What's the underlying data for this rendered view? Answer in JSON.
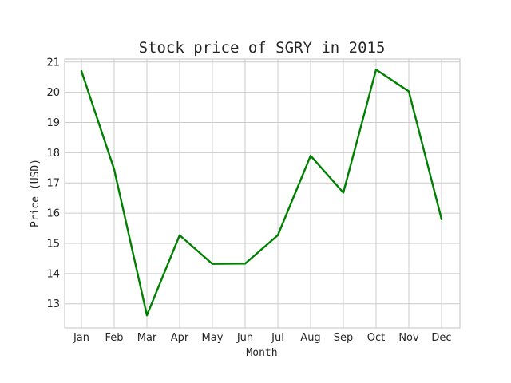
{
  "chart_data": {
    "type": "line",
    "title": "Stock price of SGRY in 2015",
    "xlabel": "Month",
    "ylabel": "Price (USD)",
    "categories": [
      "Jan",
      "Feb",
      "Mar",
      "Apr",
      "May",
      "Jun",
      "Jul",
      "Aug",
      "Sep",
      "Oct",
      "Nov",
      "Dec"
    ],
    "y_ticks": [
      "13",
      "14",
      "15",
      "16",
      "17",
      "18",
      "19",
      "20",
      "21"
    ],
    "ylim": [
      12.2,
      21.1
    ],
    "grid": true,
    "legend": "none",
    "series": [
      {
        "color": "#008000",
        "values": [
          20.7,
          17.45,
          12.62,
          15.27,
          14.32,
          14.33,
          15.27,
          17.9,
          16.68,
          20.75,
          20.03,
          15.8
        ]
      }
    ]
  }
}
